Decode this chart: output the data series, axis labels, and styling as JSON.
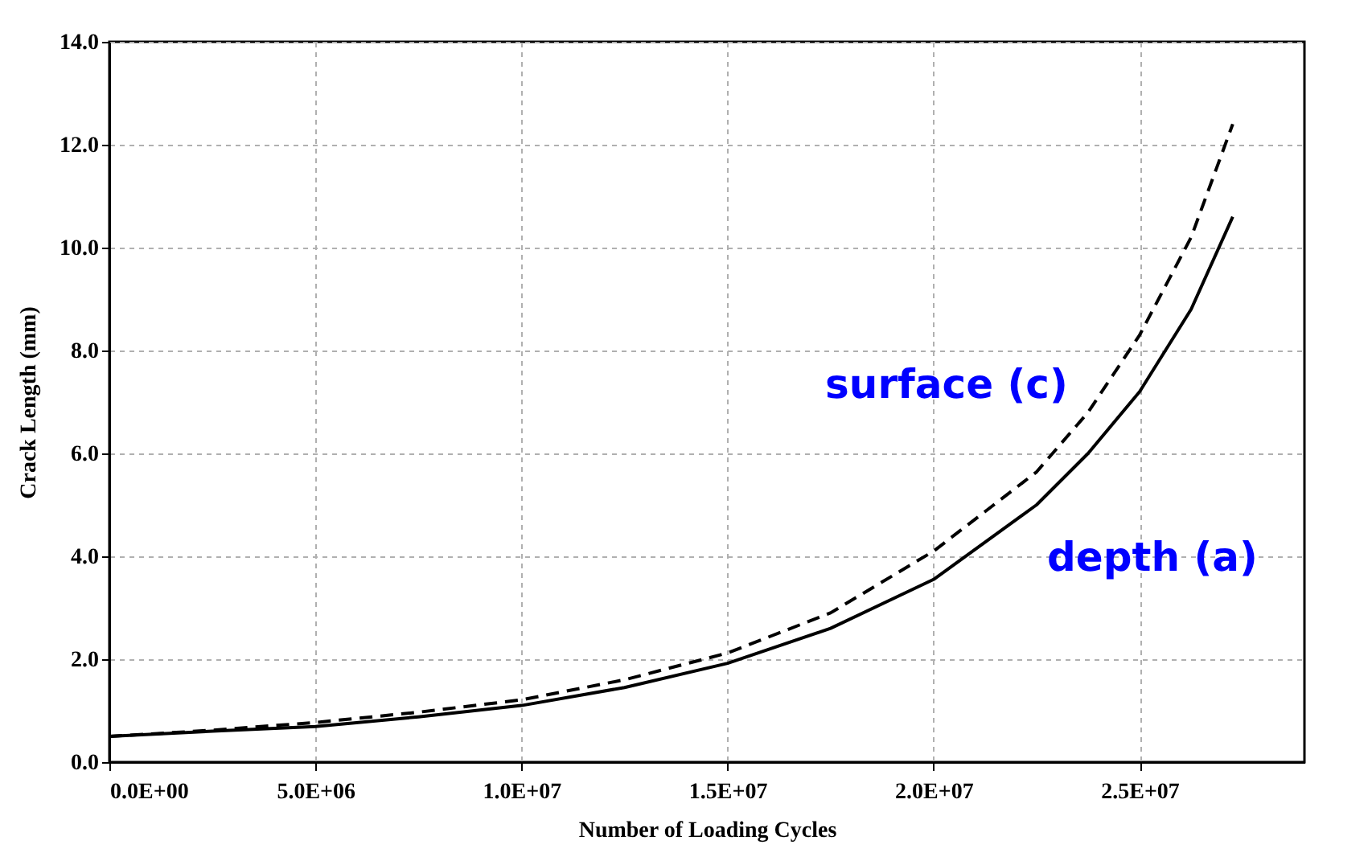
{
  "chart_data": {
    "type": "line",
    "xlabel": "Number of Loading Cycles",
    "ylabel": "Crack Length (mm)",
    "x": [
      0,
      2500000,
      5000000,
      7500000,
      10000000,
      12500000,
      15000000,
      17500000,
      20000000,
      22500000,
      23750000,
      25000000,
      26250000,
      27260000
    ],
    "series": [
      {
        "name": "surface (c)",
        "color": "#000000",
        "line_style": "dashed",
        "values": [
          0.5,
          0.62,
          0.77,
          0.97,
          1.21,
          1.6,
          2.12,
          2.9,
          4.1,
          5.64,
          6.8,
          8.3,
          10.2,
          12.4
        ]
      },
      {
        "name": "depth (a)",
        "color": "#000000",
        "line_style": "solid",
        "values": [
          0.5,
          0.6,
          0.69,
          0.88,
          1.1,
          1.45,
          1.92,
          2.6,
          3.55,
          5.0,
          6.0,
          7.2,
          8.8,
          10.6
        ]
      }
    ],
    "xlim": [
      0,
      29000000
    ],
    "ylim": [
      0,
      14
    ],
    "xticks": [
      {
        "value": 0,
        "label": "0.0E+00"
      },
      {
        "value": 5000000,
        "label": "5.0E+06"
      },
      {
        "value": 10000000,
        "label": "1.0E+07"
      },
      {
        "value": 15000000,
        "label": "1.5E+07"
      },
      {
        "value": 20000000,
        "label": "2.0E+07"
      },
      {
        "value": 25000000,
        "label": "2.5E+07"
      }
    ],
    "yticks": [
      {
        "value": 0,
        "label": "0.0"
      },
      {
        "value": 2,
        "label": "2.0"
      },
      {
        "value": 4,
        "label": "4.0"
      },
      {
        "value": 6,
        "label": "6.0"
      },
      {
        "value": 8,
        "label": "8.0"
      },
      {
        "value": 10,
        "label": "10.0"
      },
      {
        "value": 12,
        "label": "12.0"
      },
      {
        "value": 14,
        "label": "14.0"
      }
    ],
    "grid": true,
    "marker": "none",
    "legend": false
  }
}
